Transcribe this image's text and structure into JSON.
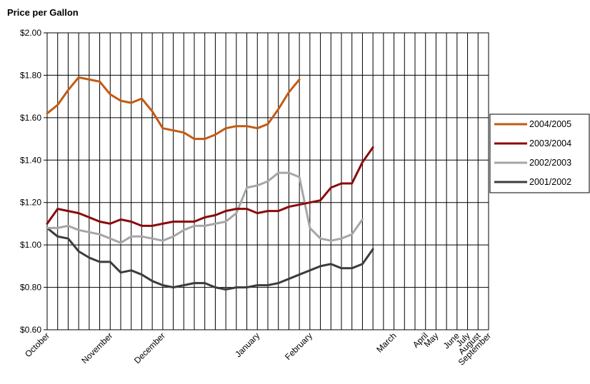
{
  "chart_data": {
    "type": "line",
    "title": "Price per Gallon",
    "xlabel": "",
    "ylabel": "",
    "ylim": [
      0.6,
      2.0
    ],
    "y_ticks": [
      "$0.60",
      "$0.80",
      "$1.00",
      "$1.20",
      "$1.40",
      "$1.60",
      "$1.80",
      "$2.00"
    ],
    "y_tick_values": [
      0.6,
      0.8,
      1.0,
      1.2,
      1.4,
      1.6,
      1.8,
      2.0
    ],
    "grid": true,
    "legend_position": "right",
    "x_labels": [
      {
        "text": "October",
        "index": 0
      },
      {
        "text": "November",
        "index": 6
      },
      {
        "text": "December",
        "index": 11
      },
      {
        "text": "January",
        "index": 20
      },
      {
        "text": "February",
        "index": 25
      },
      {
        "text": "March",
        "index": 33
      },
      {
        "text": "April",
        "index": 36
      },
      {
        "text": "May",
        "index": 37
      },
      {
        "text": "June",
        "index": 39
      },
      {
        "text": "July",
        "index": 40
      },
      {
        "text": "August",
        "index": 41
      },
      {
        "text": "September",
        "index": 42
      }
    ],
    "series": [
      {
        "name": "2004/2005",
        "color": "#c45a12",
        "values": [
          1.62,
          1.66,
          1.73,
          1.79,
          1.78,
          1.77,
          1.71,
          1.68,
          1.67,
          1.69,
          1.63,
          1.55,
          1.54,
          1.53,
          1.5,
          1.5,
          1.52,
          1.55,
          1.56,
          1.56,
          1.55,
          1.57,
          1.64,
          1.72,
          1.78
        ]
      },
      {
        "name": "2003/2004",
        "color": "#8b0a0a",
        "values": [
          1.1,
          1.17,
          1.16,
          1.15,
          1.13,
          1.11,
          1.1,
          1.12,
          1.11,
          1.09,
          1.09,
          1.1,
          1.11,
          1.11,
          1.11,
          1.13,
          1.14,
          1.16,
          1.17,
          1.17,
          1.15,
          1.16,
          1.16,
          1.18,
          1.19,
          1.2,
          1.21,
          1.27,
          1.29,
          1.29,
          1.39,
          1.46
        ]
      },
      {
        "name": "2002/2003",
        "color": "#a6a6a6",
        "values": [
          1.08,
          1.08,
          1.09,
          1.07,
          1.06,
          1.05,
          1.03,
          1.01,
          1.04,
          1.04,
          1.03,
          1.02,
          1.04,
          1.07,
          1.09,
          1.09,
          1.1,
          1.11,
          1.15,
          1.27,
          1.28,
          1.3,
          1.34,
          1.34,
          1.32,
          1.08,
          1.03,
          1.02,
          1.03,
          1.05,
          1.12
        ]
      },
      {
        "name": "2001/2002",
        "color": "#3c3c3c",
        "values": [
          1.08,
          1.04,
          1.03,
          0.97,
          0.94,
          0.92,
          0.92,
          0.87,
          0.88,
          0.86,
          0.83,
          0.81,
          0.8,
          0.81,
          0.82,
          0.82,
          0.8,
          0.79,
          0.8,
          0.8,
          0.81,
          0.81,
          0.82,
          0.84,
          0.86,
          0.88,
          0.9,
          0.91,
          0.89,
          0.89,
          0.91,
          0.98
        ]
      }
    ]
  }
}
